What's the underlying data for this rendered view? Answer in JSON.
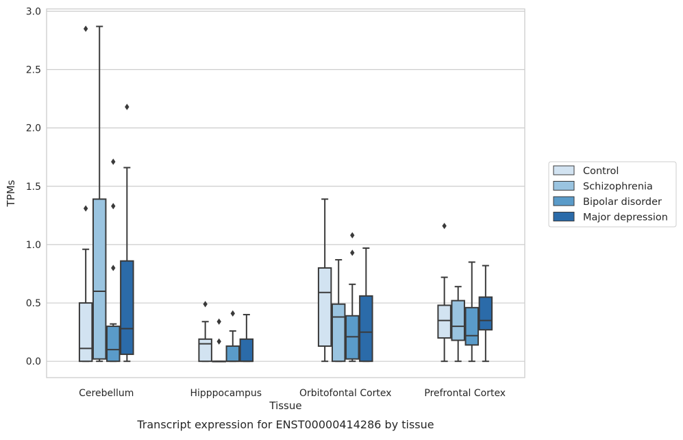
{
  "chart_data": {
    "type": "box",
    "title": "",
    "xlabel": "Tissue",
    "ylabel": "TPMs",
    "caption": "Transcript expression for ENST00000414286 by tissue",
    "ylim": [
      -0.14,
      3.02
    ],
    "yticks": [
      0.0,
      0.5,
      1.0,
      1.5,
      2.0,
      2.5,
      3.0
    ],
    "ytick_labels": [
      "0.0",
      "0.5",
      "1.0",
      "1.5",
      "2.0",
      "2.5",
      "3.0"
    ],
    "grid": "horizontal",
    "legend_position": "right",
    "categories": [
      "Cerebellum",
      "Hipppocampus",
      "Orbitofontal Cortex",
      "Prefrontal Cortex"
    ],
    "series": [
      {
        "name": "Control",
        "color": "#d2e3f1",
        "boxes": [
          {
            "whislo": 0.0,
            "q1": 0.0,
            "med": 0.11,
            "q3": 0.5,
            "whishi": 0.96,
            "fliers": [
              1.31,
              2.85
            ]
          },
          {
            "whislo": 0.0,
            "q1": 0.0,
            "med": 0.15,
            "q3": 0.19,
            "whishi": 0.34,
            "fliers": [
              0.49
            ]
          },
          {
            "whislo": 0.0,
            "q1": 0.13,
            "med": 0.59,
            "q3": 0.8,
            "whishi": 1.39,
            "fliers": []
          },
          {
            "whislo": 0.0,
            "q1": 0.2,
            "med": 0.35,
            "q3": 0.48,
            "whishi": 0.72,
            "fliers": [
              1.16
            ]
          }
        ]
      },
      {
        "name": "Schizophrenia",
        "color": "#9ac4e0",
        "boxes": [
          {
            "whislo": 0.0,
            "q1": 0.02,
            "med": 0.6,
            "q3": 1.39,
            "whishi": 2.87,
            "fliers": []
          },
          {
            "whislo": 0.0,
            "q1": 0.0,
            "med": 0.0,
            "q3": 0.0,
            "whishi": 0.0,
            "fliers": [
              0.17,
              0.34
            ]
          },
          {
            "whislo": 0.0,
            "q1": 0.0,
            "med": 0.38,
            "q3": 0.49,
            "whishi": 0.87,
            "fliers": []
          },
          {
            "whislo": 0.0,
            "q1": 0.18,
            "med": 0.3,
            "q3": 0.52,
            "whishi": 0.64,
            "fliers": []
          }
        ]
      },
      {
        "name": "Bipolar disorder",
        "color": "#5a9bc9",
        "boxes": [
          {
            "whislo": 0.0,
            "q1": 0.0,
            "med": 0.1,
            "q3": 0.3,
            "whishi": 0.32,
            "fliers": [
              0.8,
              1.33,
              1.71
            ]
          },
          {
            "whislo": 0.0,
            "q1": 0.0,
            "med": 0.0,
            "q3": 0.13,
            "whishi": 0.26,
            "fliers": [
              0.41
            ]
          },
          {
            "whislo": 0.0,
            "q1": 0.02,
            "med": 0.21,
            "q3": 0.39,
            "whishi": 0.66,
            "fliers": [
              0.93,
              1.08
            ]
          },
          {
            "whislo": 0.0,
            "q1": 0.14,
            "med": 0.22,
            "q3": 0.46,
            "whishi": 0.85,
            "fliers": []
          }
        ]
      },
      {
        "name": "Major depression",
        "color": "#2b6ba9",
        "boxes": [
          {
            "whislo": 0.0,
            "q1": 0.06,
            "med": 0.28,
            "q3": 0.86,
            "whishi": 1.66,
            "fliers": [
              2.18
            ]
          },
          {
            "whislo": 0.0,
            "q1": 0.0,
            "med": 0.0,
            "q3": 0.19,
            "whishi": 0.4,
            "fliers": []
          },
          {
            "whislo": 0.0,
            "q1": 0.0,
            "med": 0.25,
            "q3": 0.56,
            "whishi": 0.97,
            "fliers": []
          },
          {
            "whislo": 0.0,
            "q1": 0.27,
            "med": 0.35,
            "q3": 0.55,
            "whishi": 0.82,
            "fliers": []
          }
        ]
      }
    ]
  }
}
